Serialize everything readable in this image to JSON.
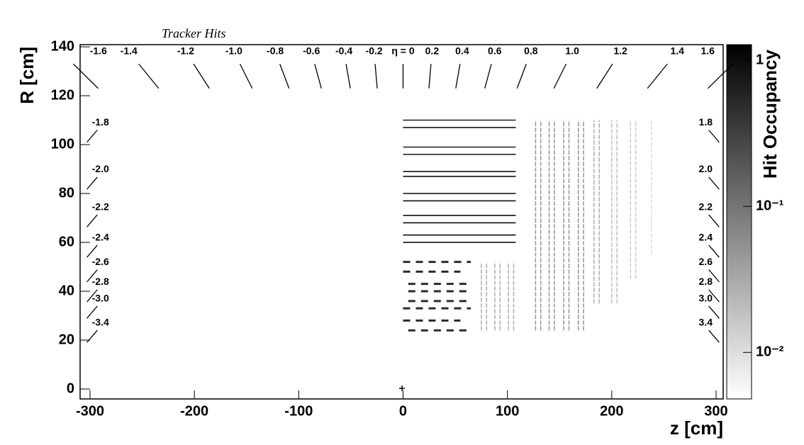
{
  "chart_data": {
    "type": "tracker-hits",
    "title": "Tracker Hits",
    "xlabel": "z [cm]",
    "ylabel": "R [cm]",
    "colorbar_label": "Hit Occupancy",
    "xlim": [
      -309.5,
      306.8
    ],
    "ylim": [
      -4.06,
      140.9
    ],
    "xticks": [
      -300,
      -200,
      -100,
      0,
      100,
      200,
      300
    ],
    "yticks": [
      0,
      20,
      40,
      60,
      80,
      100,
      120,
      140
    ],
    "zlim": [
      0.0048,
      1.28
    ],
    "zscale": "log",
    "zticks": [
      {
        "value": 1,
        "label": "1"
      },
      {
        "value": 0.1,
        "label": "10⁻¹"
      },
      {
        "value": 0.01,
        "label": "10⁻²"
      }
    ],
    "eta_lines": [
      -1.6,
      -1.4,
      -1.2,
      {
        "value": -1.0,
        "label": "-1.0"
      },
      -0.8,
      -0.6,
      -0.4,
      -0.2,
      {
        "value": 0,
        "label": "η = 0"
      },
      0.2,
      0.4,
      0.6,
      0.8,
      {
        "value": 1.0,
        "label": "1.0"
      },
      1.2,
      1.4,
      1.6,
      -1.8,
      {
        "value": -2.0,
        "label": "-2.0"
      },
      -2.2,
      -2.4,
      -2.6,
      -2.8,
      {
        "value": -3.0,
        "label": "-3.0"
      },
      -3.4,
      1.8,
      {
        "value": 2.0,
        "label": "2.0"
      },
      2.2,
      2.4,
      2.6,
      2.8,
      {
        "value": 3.0,
        "label": "3.0"
      },
      3.4
    ],
    "barrel_layers": [
      {
        "r": 110,
        "zmin": 0,
        "zmax": 108,
        "occupancy": 0.5
      },
      {
        "r": 107,
        "zmin": 0,
        "zmax": 108,
        "occupancy": 0.9
      },
      {
        "r": 99,
        "zmin": 0,
        "zmax": 108,
        "occupancy": 0.5
      },
      {
        "r": 96,
        "zmin": 0,
        "zmax": 108,
        "occupancy": 0.9
      },
      {
        "r": 89,
        "zmin": 0,
        "zmax": 108,
        "occupancy": 0.9
      },
      {
        "r": 87,
        "zmin": 0,
        "zmax": 108,
        "occupancy": 0.9
      },
      {
        "r": 80,
        "zmin": 0,
        "zmax": 108,
        "occupancy": 0.7
      },
      {
        "r": 77,
        "zmin": 0,
        "zmax": 108,
        "occupancy": 0.9
      },
      {
        "r": 71,
        "zmin": 0,
        "zmax": 108,
        "occupancy": 0.9
      },
      {
        "r": 68,
        "zmin": 0,
        "zmax": 108,
        "occupancy": 0.9
      },
      {
        "r": 63,
        "zmin": 0,
        "zmax": 108,
        "occupancy": 0.9
      },
      {
        "r": 60,
        "zmin": 0,
        "zmax": 108,
        "occupancy": 0.9
      },
      {
        "r": 52,
        "zmin": 0,
        "zmax": 65,
        "occupancy": 0.5
      },
      {
        "r": 48,
        "zmin": 0,
        "zmax": 55,
        "occupancy": 0.5
      },
      {
        "r": 43,
        "zmin": 5,
        "zmax": 65,
        "occupancy": 0.5
      },
      {
        "r": 40,
        "zmin": 5,
        "zmax": 65,
        "occupancy": 0.5
      },
      {
        "r": 36,
        "zmin": 5,
        "zmax": 65,
        "occupancy": 0.5
      },
      {
        "r": 33,
        "zmin": 0,
        "zmax": 65,
        "occupancy": 0.5
      },
      {
        "r": 28,
        "zmin": 0,
        "zmax": 55,
        "occupancy": 0.5
      },
      {
        "r": 24,
        "zmin": 5,
        "zmax": 63,
        "occupancy": 0.5
      }
    ],
    "endcap_disks": [
      {
        "z": 75,
        "rmin": 24,
        "rmax": 52,
        "occupancy": 0.03
      },
      {
        "z": 80,
        "rmin": 24,
        "rmax": 52,
        "occupancy": 0.03
      },
      {
        "z": 88,
        "rmin": 24,
        "rmax": 52,
        "occupancy": 0.03
      },
      {
        "z": 93,
        "rmin": 24,
        "rmax": 52,
        "occupancy": 0.03
      },
      {
        "z": 101,
        "rmin": 24,
        "rmax": 52,
        "occupancy": 0.03
      },
      {
        "z": 106,
        "rmin": 24,
        "rmax": 52,
        "occupancy": 0.03
      },
      {
        "z": 127,
        "rmin": 24,
        "rmax": 110,
        "occupancy": 0.05
      },
      {
        "z": 132,
        "rmin": 24,
        "rmax": 110,
        "occupancy": 0.05
      },
      {
        "z": 140,
        "rmin": 24,
        "rmax": 110,
        "occupancy": 0.05
      },
      {
        "z": 145,
        "rmin": 24,
        "rmax": 110,
        "occupancy": 0.05
      },
      {
        "z": 154,
        "rmin": 24,
        "rmax": 110,
        "occupancy": 0.05
      },
      {
        "z": 159,
        "rmin": 24,
        "rmax": 110,
        "occupancy": 0.05
      },
      {
        "z": 168,
        "rmin": 24,
        "rmax": 110,
        "occupancy": 0.05
      },
      {
        "z": 173,
        "rmin": 24,
        "rmax": 110,
        "occupancy": 0.05
      },
      {
        "z": 183,
        "rmin": 35,
        "rmax": 110,
        "occupancy": 0.03
      },
      {
        "z": 188,
        "rmin": 35,
        "rmax": 110,
        "occupancy": 0.03
      },
      {
        "z": 200,
        "rmin": 35,
        "rmax": 110,
        "occupancy": 0.02
      },
      {
        "z": 205,
        "rmin": 35,
        "rmax": 110,
        "occupancy": 0.02
      },
      {
        "z": 218,
        "rmin": 45,
        "rmax": 110,
        "occupancy": 0.015
      },
      {
        "z": 223,
        "rmin": 45,
        "rmax": 110,
        "occupancy": 0.015
      },
      {
        "z": 238,
        "rmin": 55,
        "rmax": 110,
        "occupancy": 0.01
      }
    ]
  }
}
